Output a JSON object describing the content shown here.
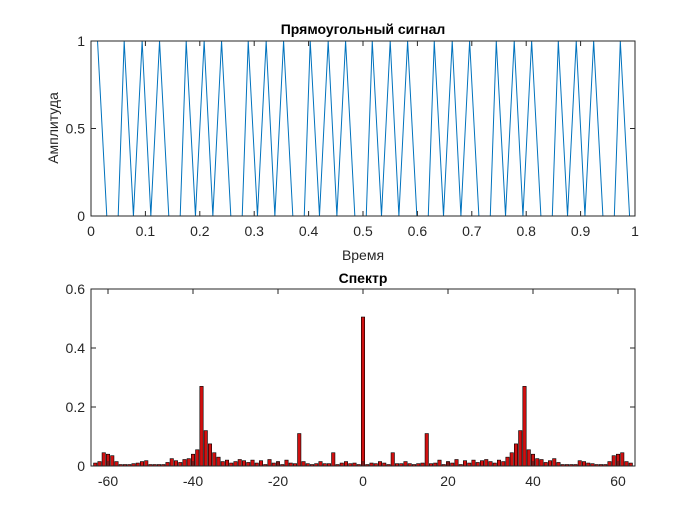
{
  "chart_data": [
    {
      "type": "line",
      "title": "Прямоугольный сигнал",
      "xlabel": "Время",
      "ylabel": "Амплитуда",
      "xlim": [
        0,
        1
      ],
      "ylim": [
        0,
        1
      ],
      "xticks": [
        0,
        0.1,
        0.2,
        0.3,
        0.4,
        0.5,
        0.6,
        0.7,
        0.8,
        0.9,
        1
      ],
      "xtick_labels": [
        "0",
        "0.1",
        "0.2",
        "0.3",
        "0.4",
        "0.5",
        "0.6",
        "0.7",
        "0.8",
        "0.9",
        "1"
      ],
      "yticks": [
        0,
        0.5,
        1
      ],
      "ytick_labels": [
        "0",
        "0.5",
        "1"
      ],
      "grid": false,
      "series": [
        {
          "color": "#0072BD",
          "x": [
            0.012,
            0.029,
            0.045,
            0.05,
            0.061,
            0.078,
            0.094,
            0.11,
            0.126,
            0.143,
            0.159,
            0.164,
            0.175,
            0.192,
            0.208,
            0.224,
            0.24,
            0.257,
            0.273,
            0.278,
            0.289,
            0.306,
            0.322,
            0.338,
            0.354,
            0.371,
            0.387,
            0.392,
            0.403,
            0.42,
            0.436,
            0.452,
            0.468,
            0.485,
            0.501,
            0.506,
            0.517,
            0.534,
            0.55,
            0.566,
            0.582,
            0.599,
            0.615,
            0.62,
            0.631,
            0.648,
            0.664,
            0.68,
            0.696,
            0.713,
            0.729,
            0.734,
            0.745,
            0.762,
            0.778,
            0.794,
            0.81,
            0.827,
            0.843,
            0.848,
            0.859,
            0.876,
            0.892,
            0.908,
            0.924,
            0.941,
            0.957,
            0.962,
            0.973,
            0.99
          ],
          "y": [
            1,
            0,
            0,
            0,
            1,
            0,
            1,
            0,
            1,
            0,
            0,
            0,
            1,
            0,
            1,
            0,
            1,
            0,
            0,
            0,
            1,
            0,
            1,
            0,
            1,
            0,
            0,
            0,
            1,
            0,
            1,
            0,
            1,
            0,
            0,
            0,
            1,
            0,
            1,
            0,
            1,
            0,
            0,
            0,
            1,
            0,
            1,
            0,
            1,
            0,
            0,
            0,
            1,
            0,
            1,
            0,
            1,
            0,
            0,
            0,
            1,
            0,
            1,
            0,
            1,
            0,
            0,
            0,
            1,
            0
          ]
        }
      ]
    },
    {
      "type": "bar",
      "title": "Спектр",
      "xlabel": "",
      "ylabel": "",
      "xlim": [
        -64,
        64
      ],
      "ylim": [
        0,
        0.6
      ],
      "xticks": [
        -60,
        -40,
        -20,
        0,
        20,
        40,
        60
      ],
      "xtick_labels": [
        "-60",
        "-40",
        "-20",
        "0",
        "20",
        "40",
        "60"
      ],
      "yticks": [
        0,
        0.2,
        0.4,
        0.6
      ],
      "ytick_labels": [
        "0",
        "0.2",
        "0.4",
        "0.6"
      ],
      "grid": false,
      "bar_color": "#D01010",
      "edge_color": "#000000",
      "x": [
        -63,
        -62,
        -61,
        -60,
        -59,
        -58,
        -57,
        -56,
        -55,
        -54,
        -53,
        -52,
        -51,
        -50,
        -49,
        -48,
        -47,
        -46,
        -45,
        -44,
        -43,
        -42,
        -41,
        -40,
        -39,
        -38,
        -37,
        -36,
        -35,
        -34,
        -33,
        -32,
        -31,
        -30,
        -29,
        -28,
        -27,
        -26,
        -25,
        -24,
        -23,
        -22,
        -21,
        -20,
        -19,
        -18,
        -17,
        -16,
        -15,
        -14,
        -13,
        -12,
        -11,
        -10,
        -9,
        -8,
        -7,
        -6,
        -5,
        -4,
        -3,
        -2,
        -1,
        0,
        1,
        2,
        3,
        4,
        5,
        6,
        7,
        8,
        9,
        10,
        11,
        12,
        13,
        14,
        15,
        16,
        17,
        18,
        19,
        20,
        21,
        22,
        23,
        24,
        25,
        26,
        27,
        28,
        29,
        30,
        31,
        32,
        33,
        34,
        35,
        36,
        37,
        38,
        39,
        40,
        41,
        42,
        43,
        44,
        45,
        46,
        47,
        48,
        49,
        50,
        51,
        52,
        53,
        54,
        55,
        56,
        57,
        58,
        59,
        60,
        61,
        62,
        63
      ],
      "values": [
        0.01,
        0.015,
        0.045,
        0.04,
        0.035,
        0.015,
        0.005,
        0.005,
        0.005,
        0.008,
        0.01,
        0.015,
        0.018,
        0.005,
        0.005,
        0.005,
        0.005,
        0.012,
        0.025,
        0.018,
        0.012,
        0.022,
        0.025,
        0.04,
        0.055,
        0.27,
        0.12,
        0.075,
        0.045,
        0.03,
        0.015,
        0.02,
        0.01,
        0.015,
        0.022,
        0.018,
        0.012,
        0.02,
        0.01,
        0.018,
        0.005,
        0.022,
        0.01,
        0.015,
        0.005,
        0.02,
        0.01,
        0.008,
        0.11,
        0.015,
        0.008,
        0.005,
        0.008,
        0.015,
        0.008,
        0.008,
        0.045,
        0.005,
        0.01,
        0.015,
        0.008,
        0.01,
        0.005,
        0.505,
        0.005,
        0.01,
        0.008,
        0.015,
        0.01,
        0.005,
        0.045,
        0.008,
        0.008,
        0.015,
        0.008,
        0.005,
        0.008,
        0.01,
        0.11,
        0.008,
        0.01,
        0.02,
        0.005,
        0.015,
        0.01,
        0.022,
        0.005,
        0.018,
        0.01,
        0.02,
        0.012,
        0.018,
        0.022,
        0.015,
        0.01,
        0.02,
        0.015,
        0.03,
        0.045,
        0.075,
        0.12,
        0.27,
        0.055,
        0.04,
        0.025,
        0.022,
        0.012,
        0.018,
        0.025,
        0.012,
        0.005,
        0.005,
        0.005,
        0.005,
        0.018,
        0.015,
        0.01,
        0.008,
        0.005,
        0.005,
        0.005,
        0.015,
        0.035,
        0.04,
        0.045,
        0.015,
        0.01
      ]
    }
  ]
}
